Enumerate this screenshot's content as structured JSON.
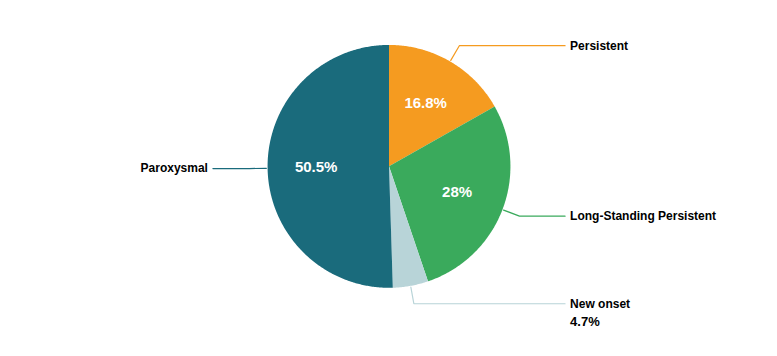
{
  "chart_data": {
    "type": "pie",
    "categories": [
      "Persistent",
      "Long-Standing Persistent",
      "New onset",
      "Paroxysmal"
    ],
    "values": [
      16.8,
      28.0,
      4.7,
      50.5
    ],
    "value_labels": [
      "16.8%",
      "28%",
      "4.7%",
      "50.5%"
    ],
    "colors": [
      "#f59b20",
      "#3aaa5c",
      "#b8d4d8",
      "#1a6b7c"
    ],
    "data_labels": true
  }
}
